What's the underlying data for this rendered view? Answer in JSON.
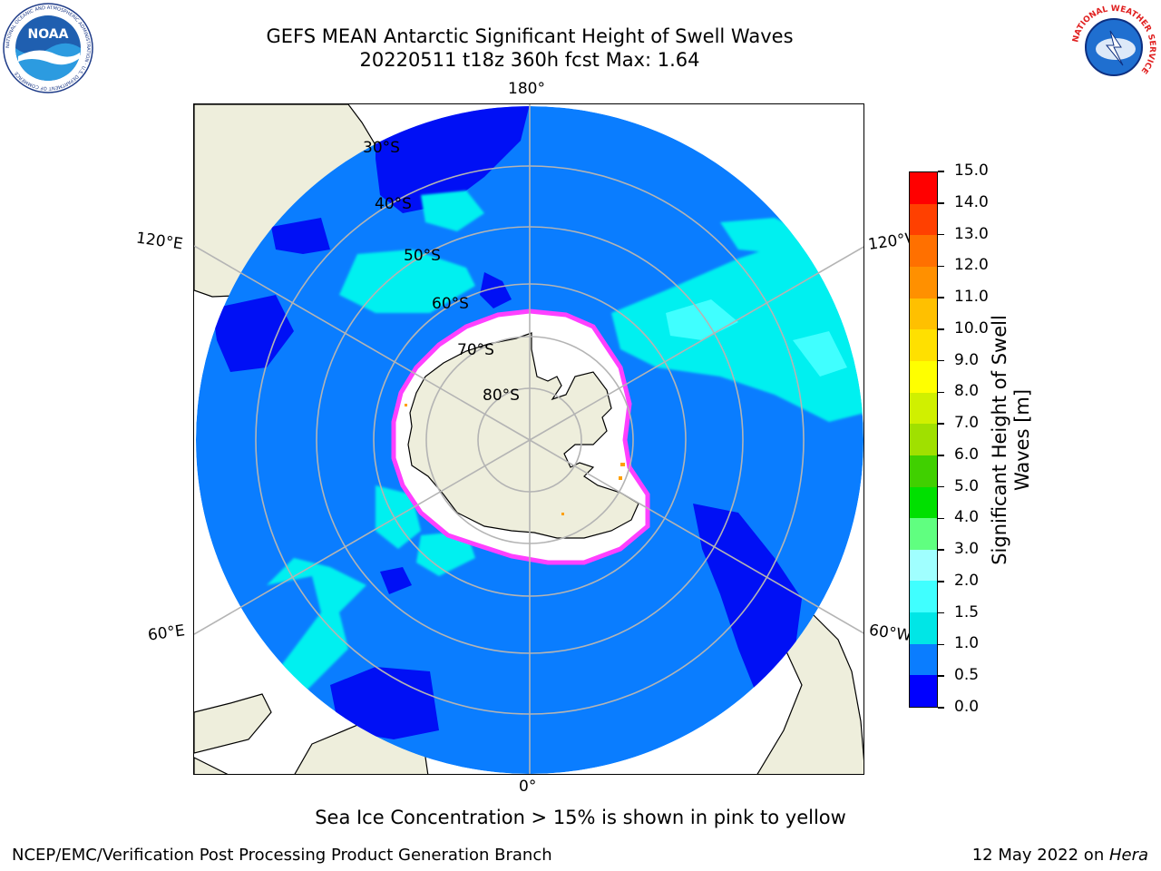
{
  "title_line1": "GEFS MEAN Antarctic Significant Height of Swell Waves",
  "title_line2": "20220511 t18z 360h fcst   Max: 1.64",
  "logos": {
    "left": {
      "name": "noaa-logo",
      "text": "NOAA",
      "ring_text": "NATIONAL OCEANIC AND ATMOSPHERIC ADMINISTRATION · U.S. DEPARTMENT OF COMMERCE"
    },
    "right": {
      "name": "nws-logo",
      "ring_text": "NATIONAL WEATHER SERVICE"
    }
  },
  "map": {
    "projection": "south-polar-stereographic",
    "lon_labels": {
      "top": "180°",
      "bottom": "0°",
      "upper_left": "120°E",
      "upper_right": "120°W",
      "lower_left": "60°E",
      "lower_right": "60°W"
    },
    "lat_labels": [
      "30°S",
      "40°S",
      "50°S",
      "60°S",
      "70°S",
      "80°S"
    ],
    "colors": {
      "ocean_default": "#0a7dff",
      "ocean_low": "#0010f5",
      "swell_1to1_5": "#00f0f0",
      "swell_1_5to2": "#30ffff",
      "land": "#eeeedc",
      "sea_ice": "#ffffff",
      "ice_edge": "#ff40ff",
      "grid": "#b4b4b4"
    }
  },
  "colorbar": {
    "label_line1": "Significant Height of Swell",
    "label_line2": "Waves [m]",
    "ticks": [
      "0.0",
      "0.5",
      "1.0",
      "1.5",
      "2.0",
      "3.0",
      "4.0",
      "5.0",
      "6.0",
      "7.0",
      "8.0",
      "9.0",
      "10.0",
      "11.0",
      "12.0",
      "13.0",
      "14.0",
      "15.0"
    ],
    "colors": [
      "#0000ff",
      "#0a7dff",
      "#00e6e6",
      "#40ffff",
      "#a0ffff",
      "#60ff80",
      "#00e000",
      "#40d000",
      "#a0e000",
      "#d0f000",
      "#ffff00",
      "#ffe000",
      "#ffc000",
      "#ff9000",
      "#ff7000",
      "#ff4000",
      "#ff0000"
    ]
  },
  "note": "Sea Ice Concentration > 15% is shown in pink to yellow",
  "footer": {
    "left": "NCEP/EMC/Verification Post Processing Product Generation Branch",
    "right_date": "12 May 2022 on ",
    "right_host": "Hera"
  }
}
